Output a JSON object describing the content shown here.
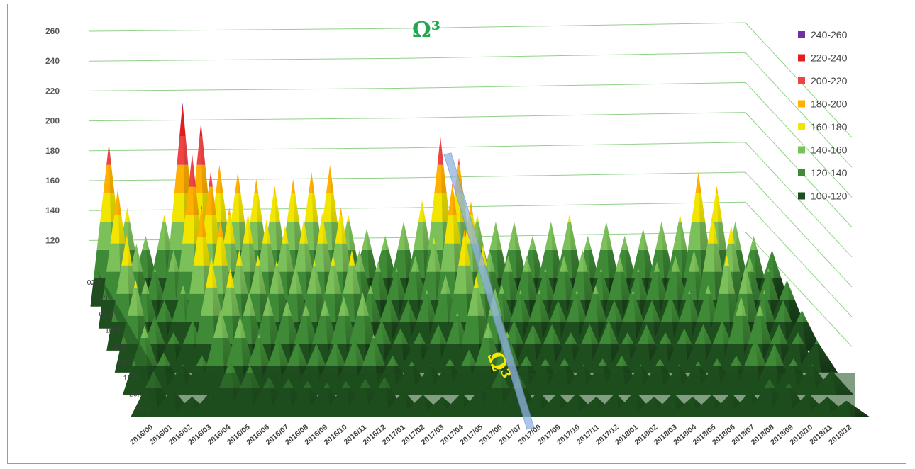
{
  "chart_data": {
    "type": "area",
    "subtype": "3d-surface",
    "title": "",
    "annotation": "Ω³",
    "annotation_color": "#21a84f",
    "xlabel": "",
    "ylabel": "",
    "zlim": [
      100,
      260
    ],
    "z_ticks": [
      "260",
      "240",
      "220",
      "200",
      "180",
      "160",
      "140",
      "120"
    ],
    "grid": true,
    "legend_position": "right",
    "x_categories": [
      "2016/00",
      "2016/01",
      "2016/02",
      "2016/03",
      "2016/04",
      "2016/05",
      "2016/06",
      "2016/07",
      "2016/08",
      "2016/09",
      "2016/10",
      "2016/11",
      "2016/12",
      "2017/01",
      "2017/02",
      "2017/03",
      "2017/04",
      "2017/05",
      "2017/06",
      "2017/07",
      "2017/08",
      "2017/09",
      "2017/10",
      "2017/11",
      "2017/12",
      "2018/01",
      "2018/02",
      "2018/03",
      "2018/04",
      "2018/05",
      "2018/06",
      "2018/07",
      "2018/08",
      "2018/09",
      "2018/10",
      "2018/11",
      "2018/12"
    ],
    "depth_categories": [
      "02.3",
      "05.0",
      "07.3",
      "10.0",
      "12.3",
      "15.0",
      "17.3",
      "20.0",
      "22.3"
    ],
    "peak_values": [
      215,
      170,
      150,
      165,
      244,
      230,
      200,
      195,
      190,
      185,
      190,
      195,
      200,
      165,
      155,
      150,
      160,
      175,
      220,
      205,
      165,
      160,
      160,
      150,
      160,
      165,
      150,
      160,
      150,
      155,
      160,
      165,
      195,
      185,
      160,
      150,
      140
    ],
    "legend": [
      {
        "label": "240-260",
        "color": "#7030a0"
      },
      {
        "label": "220-240",
        "color": "#e02020"
      },
      {
        "label": "200-220",
        "color": "#ef4444"
      },
      {
        "label": "180-200",
        "color": "#ffb000"
      },
      {
        "label": "160-180",
        "color": "#f2e600"
      },
      {
        "label": "140-160",
        "color": "#7cc05a"
      },
      {
        "label": "120-140",
        "color": "#3f8a36"
      },
      {
        "label": "100-120",
        "color": "#1e4d1e"
      }
    ],
    "divider_color": "#8fb3e0"
  }
}
